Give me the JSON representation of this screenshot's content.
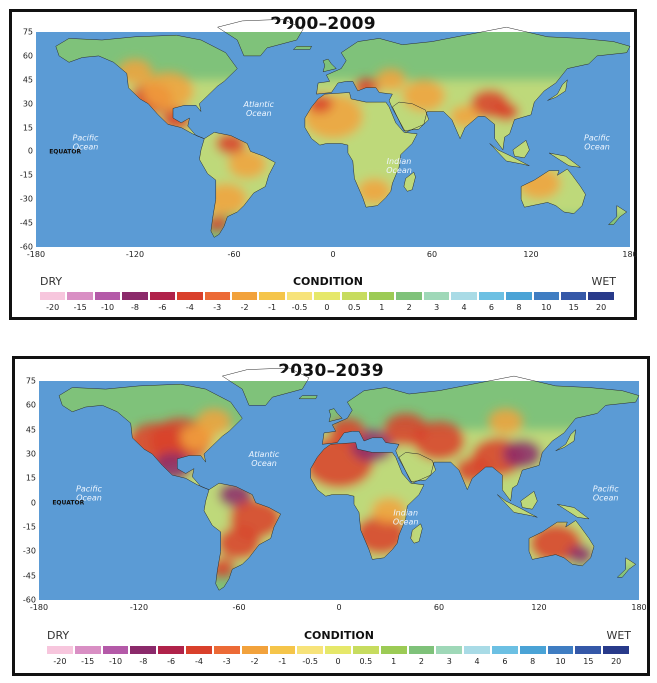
{
  "panels": [
    {
      "title": "2000–2009",
      "latitude_labels": [
        "75",
        "60",
        "45",
        "30",
        "15",
        "0",
        "-15",
        "-30",
        "-45",
        "-60"
      ],
      "longitude_labels": [
        "-180",
        "-120",
        "-60",
        "0",
        "60",
        "120",
        "180"
      ],
      "ocean_labels": [
        "Pacific Ocean",
        "Atlantic Ocean",
        "Indian Ocean",
        "Pacific Ocean"
      ],
      "equator_label": "EQUATOR",
      "legend": {
        "dry_label": "DRY",
        "wet_label": "WET",
        "title": "CONDITION",
        "ticks": [
          "-20",
          "-15",
          "-10",
          "-8",
          "-6",
          "-4",
          "-3",
          "-2",
          "-1",
          "-0.5",
          "0",
          "0.5",
          "1",
          "2",
          "3",
          "4",
          "6",
          "8",
          "10",
          "15",
          "20"
        ]
      },
      "dryness_level": "moderate"
    },
    {
      "title": "2030–2039",
      "latitude_labels": [
        "75",
        "60",
        "45",
        "30",
        "15",
        "0",
        "-15",
        "-30",
        "-45",
        "-60"
      ],
      "longitude_labels": [
        "-180",
        "-120",
        "-60",
        "0",
        "60",
        "120",
        "180"
      ],
      "ocean_labels": [
        "Pacific Ocean",
        "Atlantic Ocean",
        "Indian Ocean",
        "Pacific Ocean"
      ],
      "equator_label": "EQUATOR",
      "legend": {
        "dry_label": "DRY",
        "wet_label": "WET",
        "title": "CONDITION",
        "ticks": [
          "-20",
          "-15",
          "-10",
          "-8",
          "-6",
          "-4",
          "-3",
          "-2",
          "-1",
          "-0.5",
          "0",
          "0.5",
          "1",
          "2",
          "3",
          "4",
          "6",
          "8",
          "10",
          "15",
          "20"
        ]
      },
      "dryness_level": "severe"
    }
  ],
  "colors": {
    "ocean": "#5b9bd5",
    "land_wet": "#7fc27a",
    "land_neutral": "#d8e27a",
    "land_dry": "#f2a23c",
    "land_very_dry": "#d9402b",
    "land_extreme_dry": "#8b2a6b",
    "ice": "#ffffff",
    "legend_scale": [
      "#f7c6dd",
      "#d98fc4",
      "#b45aa8",
      "#8b2a6b",
      "#b0224a",
      "#d9402b",
      "#ec6a36",
      "#f2a23c",
      "#f5c54a",
      "#f7e37a",
      "#e6e86a",
      "#c7dc5f",
      "#9ccb55",
      "#7fc27a",
      "#9fd8b8",
      "#a9dbe6",
      "#6cc0e3",
      "#4aa3d6",
      "#3f7dc2",
      "#3558a8",
      "#283a8a"
    ]
  }
}
